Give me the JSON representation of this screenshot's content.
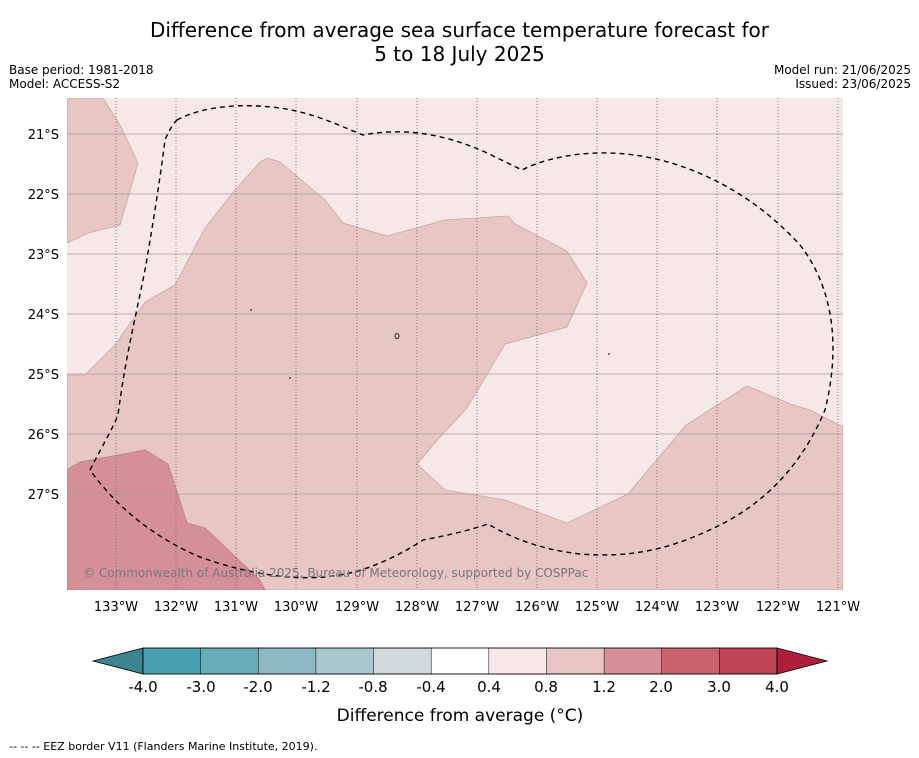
{
  "title": {
    "line1": "Difference from average sea surface temperature forecast for",
    "line2": "5 to 18 July 2025"
  },
  "meta_left": {
    "base_period": "Base period: 1981-2018",
    "model": "Model: ACCESS-S2"
  },
  "meta_right": {
    "model_run": "Model run: 21/06/2025",
    "issued": "Issued: 23/06/2025"
  },
  "map": {
    "lat_labels": [
      "21°S",
      "22°S",
      "23°S",
      "24°S",
      "25°S",
      "26°S",
      "27°S"
    ],
    "lon_labels": [
      "133°W",
      "132°W",
      "131°W",
      "130°W",
      "129°W",
      "128°W",
      "127°W",
      "126°W",
      "125°W",
      "124°W",
      "123°W",
      "122°W",
      "121°W"
    ],
    "copyright": "© Commonwealth of Australia 2025, Bureau of Meteorology, supported by COSPPac",
    "fill_colors": {
      "band_0.4_0.8": "#f5e8e7",
      "band_0.8_1.2": "#e7c6c3",
      "band_1.2_2.0": "#d58f97"
    }
  },
  "colorbar": {
    "title": "Difference from average (°C)",
    "tick_labels": [
      "-4.0",
      "-3.0",
      "-2.0",
      "-1.2",
      "-0.8",
      "-0.4",
      "0.4",
      "0.8",
      "1.2",
      "2.0",
      "3.0",
      "4.0"
    ],
    "colors": [
      "#47a1b0",
      "#6aadba",
      "#8cb8c3",
      "#abc8cd",
      "#d1d9da",
      "#ffffff",
      "#f5e8e7",
      "#e7c6c3",
      "#d58f97",
      "#c9646f",
      "#bf4455"
    ],
    "extend_low_color": "#3b8590",
    "extend_high_color": "#ae1f3e"
  },
  "footnote": "--  --  -- EEZ border V11 (Flanders Marine Institute, 2019)."
}
